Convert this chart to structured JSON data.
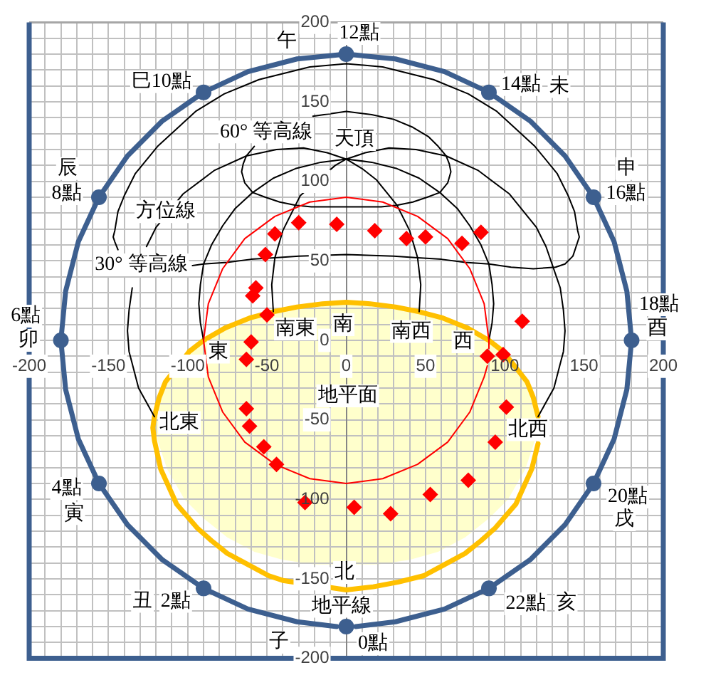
{
  "chart_data": {
    "type": "line",
    "xlim": [
      -200,
      200
    ],
    "ylim": [
      -200,
      200
    ],
    "xticks": [
      -200,
      {
        "value": -190,
        "label": null
      },
      {
        "value": -180,
        "label": null
      },
      {
        "value": -170,
        "label": null
      },
      {
        "value": -160,
        "label": null
      },
      -150,
      {
        "value": -140,
        "label": null
      },
      {
        "value": -130,
        "label": null
      },
      {
        "value": -120,
        "label": null
      },
      {
        "value": -110,
        "label": null
      },
      -100,
      {
        "value": -90,
        "label": null
      },
      {
        "value": -80,
        "label": null
      },
      {
        "value": -70,
        "label": null
      },
      {
        "value": -60,
        "label": null
      },
      -50,
      {
        "value": -40,
        "label": null
      },
      {
        "value": -30,
        "label": null
      },
      {
        "value": -20,
        "label": null
      },
      {
        "value": -10,
        "label": null
      },
      0,
      {
        "value": 10,
        "label": null
      },
      {
        "value": 20,
        "label": null
      },
      {
        "value": 30,
        "label": null
      },
      {
        "value": 40,
        "label": null
      },
      50,
      {
        "value": 60,
        "label": null
      },
      {
        "value": 70,
        "label": null
      },
      {
        "value": 80,
        "label": null
      },
      {
        "value": 90,
        "label": null
      },
      100,
      {
        "value": 110,
        "label": null
      },
      {
        "value": 120,
        "label": null
      },
      {
        "value": 130,
        "label": null
      },
      {
        "value": 140,
        "label": null
      },
      150,
      {
        "value": 160,
        "label": null
      },
      {
        "value": 170,
        "label": null
      },
      {
        "value": 180,
        "label": null
      },
      {
        "value": 190,
        "label": null
      },
      200
    ],
    "yticks": [
      -200,
      {
        "value": -190,
        "label": null
      },
      {
        "value": -180,
        "label": null
      },
      {
        "value": -170,
        "label": null
      },
      {
        "value": -160,
        "label": null
      },
      -150,
      {
        "value": -140,
        "label": null
      },
      {
        "value": -130,
        "label": null
      },
      {
        "value": -120,
        "label": null
      },
      {
        "value": -110,
        "label": null
      },
      -100,
      {
        "value": -90,
        "label": null
      },
      {
        "value": -80,
        "label": null
      },
      {
        "value": -70,
        "label": null
      },
      {
        "value": -60,
        "label": null
      },
      -50,
      {
        "value": -40,
        "label": null
      },
      {
        "value": -30,
        "label": null
      },
      {
        "value": -20,
        "label": null
      },
      {
        "value": -10,
        "label": null
      },
      0,
      {
        "value": 10,
        "label": null
      },
      {
        "value": 20,
        "label": null
      },
      {
        "value": 30,
        "label": null
      },
      {
        "value": 40,
        "label": null
      },
      50,
      {
        "value": 60,
        "label": null
      },
      {
        "value": 70,
        "label": null
      },
      {
        "value": 80,
        "label": null
      },
      {
        "value": 90,
        "label": null
      },
      100,
      {
        "value": 110,
        "label": null
      },
      {
        "value": 120,
        "label": null
      },
      {
        "value": 130,
        "label": null
      },
      {
        "value": 140,
        "label": null
      },
      150,
      {
        "value": 160,
        "label": null
      },
      {
        "value": 170,
        "label": null
      },
      {
        "value": 180,
        "label": null
      },
      {
        "value": 190,
        "label": null
      },
      200
    ],
    "grid": true,
    "series": [
      {
        "color": "#ffc000",
        "x": [
          121,
          118,
          114,
          99,
          90,
          76,
          61,
          46,
          31,
          15,
          0,
          -15,
          -31,
          -46,
          -61,
          -76,
          -90,
          -99,
          -114,
          -118,
          -121,
          -122,
          -121,
          -117,
          -107,
          -94,
          -85,
          -75,
          -62,
          -49,
          -40,
          0,
          17,
          33,
          49,
          62,
          75,
          85,
          94,
          107,
          117,
          121
        ],
        "values": [
          -48,
          -36,
          -26,
          -7,
          0,
          8,
          14,
          18,
          21,
          23,
          24,
          23,
          21,
          18,
          14,
          8,
          0,
          -7,
          -26,
          -36,
          -48,
          -55,
          -63,
          -81,
          -103,
          -118,
          -126,
          -134,
          -141,
          -148,
          -151,
          -157,
          -155,
          -152,
          -148,
          -141,
          -134,
          -126,
          -118,
          -103,
          -81,
          -65
        ]
      },
      {
        "color": "#000000",
        "x": [
          -97,
          -90,
          -75,
          -60,
          -45,
          -30,
          0,
          30,
          45,
          60,
          75,
          90,
          104,
          118,
          132,
          138,
          143,
          146,
          147,
          146,
          144,
          140,
          133,
          119,
          95,
          77,
          55,
          23,
          0,
          -23,
          -55,
          -77,
          -95,
          -119,
          -133,
          -140,
          -144,
          -146,
          -147,
          -146,
          -144
        ],
        "values": [
          47,
          48,
          49,
          51,
          52,
          53,
          54,
          53,
          52,
          51,
          49,
          48,
          46,
          45,
          46,
          48,
          53,
          62,
          65,
          69,
          81,
          91,
          105,
          122,
          144,
          155,
          164,
          172,
          174,
          172,
          164,
          155,
          144,
          122,
          105,
          91,
          81,
          69,
          65,
          62,
          57
        ]
      },
      {
        "color": "#000000",
        "x": [
          -21,
          0,
          16,
          30,
          42,
          52,
          58,
          63,
          65,
          66,
          64,
          59,
          51,
          42,
          32,
          22,
          11,
          0,
          -11,
          -22,
          -32,
          -42,
          -51,
          -59,
          -64,
          -66,
          -65,
          -63,
          -58
        ],
        "values": [
          141,
          144,
          142,
          139,
          134,
          128,
          122,
          116,
          111,
          106,
          99,
          93,
          90,
          87,
          85,
          84,
          84,
          84,
          84,
          84,
          85,
          87,
          90,
          93,
          99,
          106,
          111,
          116,
          122
        ]
      },
      {
        "color": "#000000",
        "x": [
          -121,
          -131,
          -137,
          -138,
          -137,
          -135,
          -131,
          -126,
          -120,
          -103,
          -83,
          -63,
          -44,
          -27,
          -12,
          0,
          10,
          19,
          32,
          40,
          45,
          47,
          46
        ],
        "values": [
          -48,
          -30,
          -7,
          6,
          19,
          33,
          null,
          59,
          71,
          92,
          107,
          116,
          120,
          121,
          118,
          114,
          108,
          101,
          85,
          69,
          52,
          35,
          18
        ]
      },
      {
        "color": "#000000",
        "x": [
          -90,
          -92,
          -93,
          -92,
          -90,
          -85,
          -78,
          -70,
          -59,
          -46,
          -32,
          -16,
          0,
          16,
          32,
          46,
          59,
          70,
          78,
          85,
          90,
          92,
          93,
          92,
          90
        ],
        "values": [
          0,
          11,
          23,
          35,
          48,
          60,
          72,
          83,
          93,
          102,
          108,
          112,
          114,
          112,
          108,
          102,
          93,
          83,
          72,
          60,
          48,
          35,
          23,
          11,
          0
        ]
      },
      {
        "color": "#000000",
        "x": [
          -46,
          -47,
          -45,
          -40,
          -29,
          -7,
          0,
          12,
          27,
          44,
          63,
          83,
          103,
          120,
          126,
          135,
          137,
          138,
          137,
          131,
          121
        ],
        "values": [
          18,
          35,
          52,
          69,
          91,
          110,
          114,
          118,
          121,
          120,
          116,
          107,
          92,
          71,
          59,
          33,
          19,
          6,
          -7,
          -30,
          -48
        ]
      },
      {
        "color": "#ff0000",
        "x": [
          90,
          90,
          87,
          78,
          64,
          45,
          23,
          0,
          -23,
          -45,
          -64,
          -78,
          -87,
          -90,
          -87,
          -78,
          -64,
          -45,
          -23,
          0,
          23,
          45,
          64,
          78,
          87,
          89
        ],
        "values": [
          -5,
          0,
          23,
          45,
          64,
          78,
          87,
          90,
          87,
          78,
          64,
          45,
          23,
          0,
          -23,
          -45,
          -64,
          -78,
          -87,
          -90,
          -87,
          -78,
          -64,
          -45,
          -23,
          -16
        ]
      },
      {
        "color": "#3d5f8f",
        "x": [
          6,
          31,
          62,
          90,
          116,
          138,
          156,
          169,
          177,
          180,
          177,
          169,
          156,
          138,
          116,
          90,
          62,
          31,
          0,
          -31,
          -62,
          -90,
          -116,
          -138,
          -156,
          -169,
          -177,
          -180,
          -177,
          -169,
          -156,
          -138,
          -116,
          -90,
          -62,
          -31,
          -6
        ],
        "values": [
          -180,
          -177,
          -169,
          -156,
          -138,
          -116,
          -90,
          -62,
          -31,
          0,
          31,
          62,
          90,
          116,
          138,
          156,
          169,
          177,
          180,
          177,
          169,
          156,
          138,
          116,
          90,
          62,
          31,
          0,
          -31,
          -62,
          -90,
          -116,
          -138,
          -156,
          -169,
          -177,
          -180
        ]
      },
      {
        "type": "scatter",
        "color": "#3d5f8f",
        "marker": "circle",
        "x": [
          0,
          90,
          156,
          180,
          156,
          90,
          0,
          -90,
          -156,
          -180,
          -156,
          -90
        ],
        "values": [
          180,
          156,
          90,
          0,
          -90,
          -156,
          -180,
          -156,
          -90,
          0,
          90,
          156
        ]
      },
      {
        "type": "scatter",
        "color": "#ff0000",
        "marker": "diamond",
        "x": [
          -60,
          -50,
          -59,
          -57,
          -51,
          -45,
          -30,
          -6,
          18,
          38,
          50,
          73,
          85,
          111,
          99,
          89,
          101,
          94,
          77,
          53,
          28,
          5,
          -26,
          -44,
          -52,
          -61,
          -63,
          -63
        ],
        "values": [
          -1,
          16,
          28,
          33,
          54,
          67,
          74,
          73,
          69,
          64,
          65,
          61,
          68,
          12,
          -9,
          -10,
          -42,
          -64,
          -88,
          -97,
          -109,
          -105,
          -102,
          -78,
          -67,
          -54,
          -43,
          -12
        ]
      }
    ],
    "annotations": [
      {
        "text": "午",
        "x": 0,
        "y": 180
      },
      {
        "text": "12點",
        "x": 0,
        "y": 180
      },
      {
        "text": "14點",
        "x": 90,
        "y": 156
      },
      "未",
      {
        "text": "申",
        "x": 156,
        "y": 90
      },
      {
        "text": "16點",
        "x": 156,
        "y": 90
      },
      {
        "text": "18點",
        "x": 180,
        "y": 0
      },
      {
        "text": "酉",
        "x": 180,
        "y": 0
      },
      {
        "text": "20點",
        "x": 156,
        "y": -90
      },
      {
        "text": "戌",
        "x": 156,
        "y": -90
      },
      {
        "text": "22點",
        "x": 90,
        "y": -156
      },
      "亥",
      {
        "text": "子",
        "x": 0,
        "y": -180
      },
      {
        "text": "0點",
        "x": 0,
        "y": -180
      },
      {
        "text": "丑",
        "x": -90,
        "y": -156
      },
      {
        "text": "2點",
        "x": -90,
        "y": -156
      },
      {
        "text": "4點",
        "x": -156,
        "y": -90
      },
      {
        "text": "寅",
        "x": -156,
        "y": -90
      },
      {
        "text": "6點",
        "x": -180,
        "y": 0
      },
      {
        "text": "卯",
        "x": -180,
        "y": 0
      },
      {
        "text": "辰",
        "x": -156,
        "y": 90
      },
      {
        "text": "8點",
        "x": -156,
        "y": 90
      },
      {
        "text": "巳10點",
        "x": -90,
        "y": 156
      },
      {
        "text": "天頂",
        "x": 0,
        "y": 114
      },
      {
        "text": "60° 等高線",
        "x": -58,
        "y": 122
      },
      {
        "text": "方位線",
        "x": -112,
        "y": 81
      },
      {
        "text": "30° 等高線",
        "x": -97,
        "y": 47
      },
      {
        "text": "南東",
        "x": -46,
        "y": 18
      },
      {
        "text": "南",
        "x": 0,
        "y": 24
      },
      {
        "text": "南西",
        "x": 46,
        "y": 18
      },
      {
        "text": "西",
        "x": 90,
        "y": 0
      },
      {
        "text": "東",
        "x": -90,
        "y": 0
      },
      {
        "text": "北東",
        "x": -121,
        "y": -48
      },
      {
        "text": "北西",
        "x": 121,
        "y": -48
      },
      "地平面",
      {
        "text": "北",
        "x": 0,
        "y": -157
      },
      {
        "text": "地平線",
        "x": 0,
        "y": -157
      }
    ]
  }
}
